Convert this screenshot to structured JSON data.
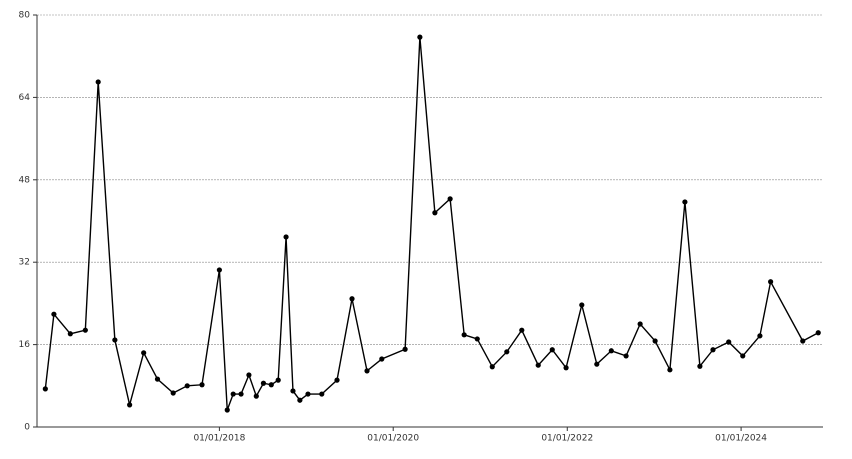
{
  "chart_data": {
    "type": "line",
    "color": "#000000",
    "grid": true,
    "x": [
      "2016-01-01",
      "2016-02-06",
      "2016-04-15",
      "2016-06-17",
      "2016-08-10",
      "2016-10-19",
      "2016-12-20",
      "2017-02-17",
      "2017-04-16",
      "2017-06-21",
      "2017-08-19",
      "2017-10-20",
      "2018-01-01",
      "2018-02-03",
      "2018-02-28",
      "2018-04-02",
      "2018-05-05",
      "2018-06-05",
      "2018-07-05",
      "2018-08-07",
      "2018-09-05",
      "2018-10-08",
      "2018-11-06",
      "2018-12-05",
      "2019-01-08",
      "2019-03-07",
      "2019-05-10",
      "2019-07-12",
      "2019-09-13",
      "2019-11-14",
      "2020-02-20",
      "2020-04-22",
      "2020-06-24",
      "2020-08-27",
      "2020-10-25",
      "2020-12-19",
      "2021-02-20",
      "2021-04-22",
      "2021-06-24",
      "2021-09-01",
      "2021-10-30",
      "2021-12-27",
      "2022-03-03",
      "2022-05-05",
      "2022-07-05",
      "2022-09-05",
      "2022-11-03",
      "2023-01-05",
      "2023-03-08",
      "2023-05-10",
      "2023-07-12",
      "2023-09-05",
      "2023-11-10",
      "2024-01-08",
      "2024-03-20",
      "2024-05-04",
      "2024-09-16",
      "2024-11-20"
    ],
    "values": [
      7.4,
      21.9,
      18.1,
      18.8,
      67.0,
      16.9,
      4.3,
      14.4,
      9.3,
      6.6,
      8.0,
      8.2,
      30.5,
      3.3,
      6.4,
      6.4,
      10.1,
      6.0,
      8.5,
      8.2,
      9.1,
      36.9,
      7.0,
      5.2,
      6.4,
      6.4,
      9.1,
      24.9,
      10.9,
      13.2,
      15.1,
      75.7,
      41.6,
      44.3,
      17.9,
      17.1,
      11.7,
      14.6,
      18.8,
      12.0,
      15.0,
      11.5,
      23.7,
      12.2,
      14.8,
      13.8,
      20.0,
      16.7,
      11.1,
      43.7,
      11.8,
      15.0,
      16.5,
      13.8,
      17.7,
      28.2,
      16.7,
      18.3
    ],
    "xlim": [
      "2015-11-27",
      "2024-12-10"
    ],
    "xticks": [
      {
        "value": "2018-01-01",
        "label": "01/01/2018"
      },
      {
        "value": "2020-01-01",
        "label": "01/01/2020"
      },
      {
        "value": "2022-01-01",
        "label": "01/01/2022"
      },
      {
        "value": "2024-01-01",
        "label": "01/01/2024"
      }
    ],
    "ylim": [
      0,
      80
    ],
    "yticks": [
      0,
      16,
      32,
      48,
      64,
      80
    ]
  }
}
